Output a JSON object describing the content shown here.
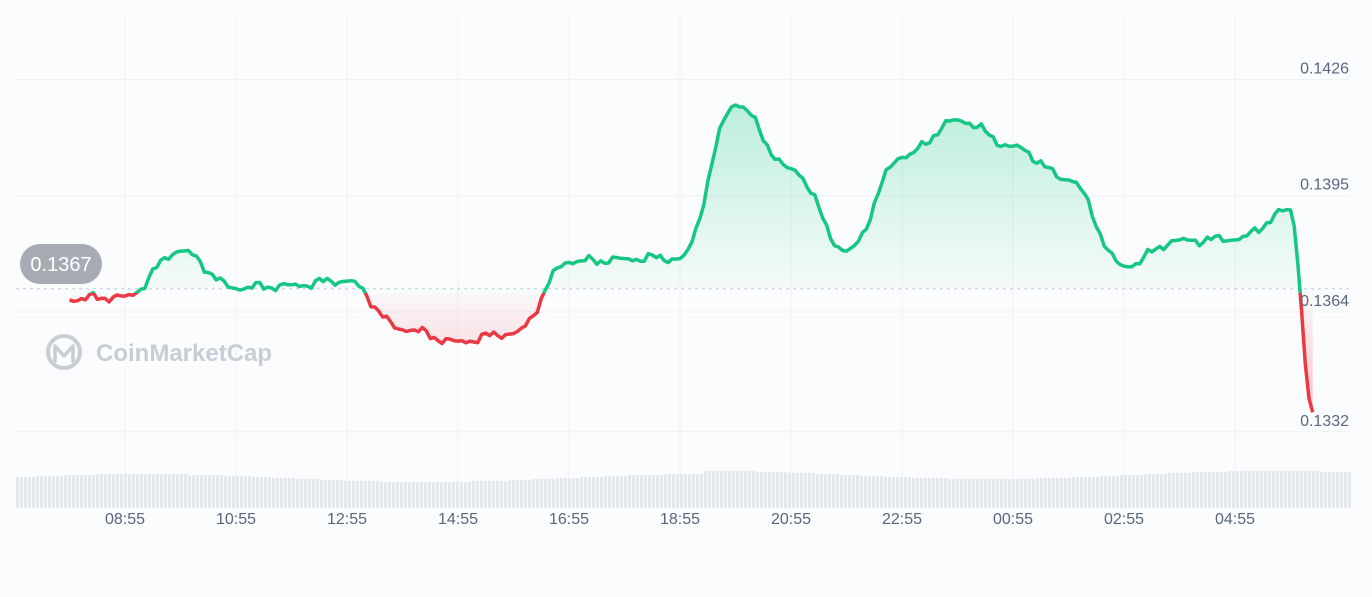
{
  "watermark": "CoinMarketCap",
  "colors": {
    "up": "#16c784",
    "down": "#ea3943",
    "grid": "#eff2f5",
    "baseline": "#cfd6e0",
    "badge": "#a7abb3",
    "volume": "#e4e7ec",
    "axis_text": "#58667e"
  },
  "chart_data": {
    "type": "area",
    "title": "",
    "xlabel": "",
    "ylabel": "",
    "x_ticks": [
      "08:55",
      "10:55",
      "12:55",
      "14:55",
      "16:55",
      "18:55",
      "20:55",
      "22:55",
      "00:55",
      "02:55",
      "04:55"
    ],
    "y_ticks": [
      0.1426,
      0.1395,
      0.1364,
      0.1332
    ],
    "ylim": [
      0.13306,
      0.14344
    ],
    "baseline_value": 0.1367,
    "current_price_label": "0.1367",
    "grid": true,
    "volume_bars_shown": true,
    "series": [
      {
        "x": [
          "07:55",
          "08:55",
          "09:55",
          "10:55",
          "11:55",
          "12:55",
          "13:55",
          "14:55",
          "15:55",
          "16:55",
          "17:55",
          "18:55",
          "19:55",
          "20:55",
          "21:55",
          "22:55",
          "23:55",
          "00:55",
          "01:55",
          "02:55",
          "03:55",
          "04:55",
          "05:55",
          "06:19"
        ],
        "values": [
          0.1364,
          0.1365,
          0.1377,
          0.1367,
          0.1368,
          0.1369,
          0.1356,
          0.1353,
          0.1355,
          0.1374,
          0.1375,
          0.1375,
          0.1416,
          0.1399,
          0.1377,
          0.1402,
          0.1412,
          0.1405,
          0.1396,
          0.1373,
          0.138,
          0.138,
          0.1388,
          0.1334
        ]
      }
    ]
  }
}
